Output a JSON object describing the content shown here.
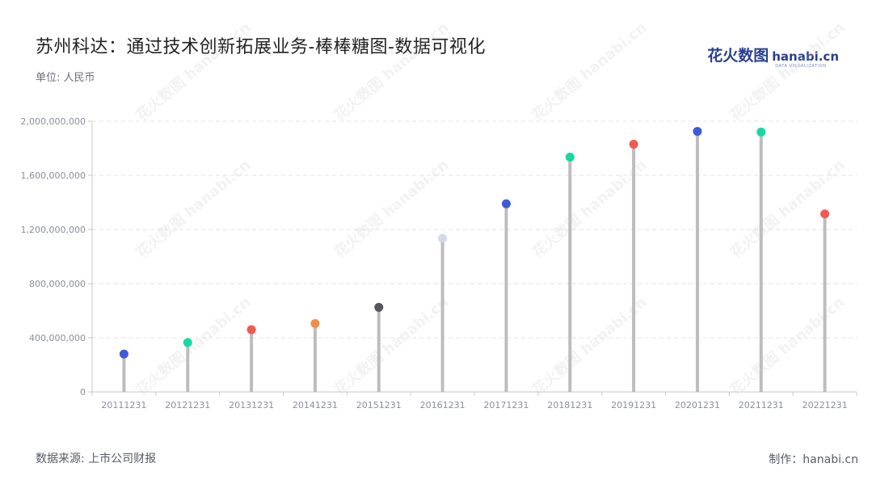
{
  "title": "苏州科达：通过技术创新拓展业务-棒棒糖图-数据可视化",
  "unit": "单位: 人民币",
  "source": "数据来源: 上市公司财报",
  "maker": "制作：hanabi.cn",
  "brand": {
    "cn": "花火数图",
    "en": "hanabi.cn",
    "sub": "DATA VISUALIZATION"
  },
  "watermark": "花火数图 hanabi.cn",
  "chart_data": {
    "type": "lollipop",
    "title": "苏州科达：通过技术创新拓展业务-棒棒糖图-数据可视化",
    "ylabel": "单位: 人民币",
    "ylim": [
      0,
      2000000000
    ],
    "yticks": [
      0,
      400000000,
      800000000,
      1200000000,
      1600000000,
      2000000000
    ],
    "ytick_labels": [
      "0",
      "400,000,000",
      "800,000,000",
      "1,200,000,000",
      "1,600,000,000",
      "2,000,000,000"
    ],
    "grid": true,
    "categories": [
      "20111231",
      "20121231",
      "20131231",
      "20141231",
      "20151231",
      "20161231",
      "20171231",
      "20181231",
      "20191231",
      "20201231",
      "20211231",
      "20221231"
    ],
    "values": [
      280000000,
      365000000,
      460000000,
      505000000,
      625000000,
      1135000000,
      1390000000,
      1735000000,
      1830000000,
      1925000000,
      1920000000,
      1315000000
    ],
    "colors": [
      "#3d5bd9",
      "#16d9a0",
      "#f15a50",
      "#f38b4c",
      "#55565e",
      "#d4d9e6",
      "#3d5bd9",
      "#16d9a0",
      "#f15a50",
      "#3d5bd9",
      "#16d9a0",
      "#f15a50"
    ],
    "stem_color": "#bdbdbd",
    "grid_color": "#e3e3e3",
    "axis_color": "#c9c9c9"
  }
}
